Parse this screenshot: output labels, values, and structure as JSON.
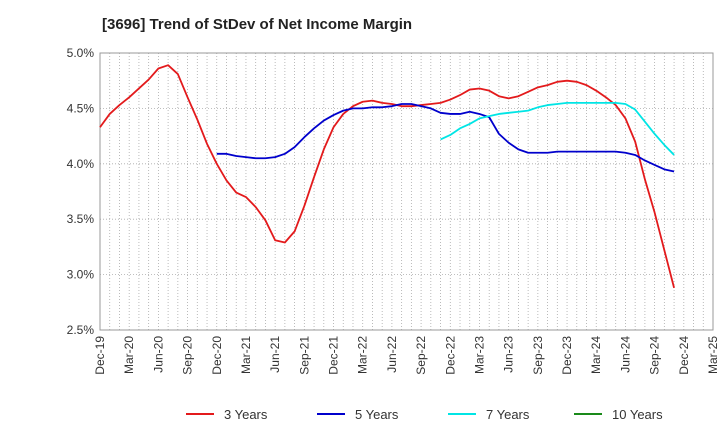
{
  "chart_data": {
    "type": "line",
    "title": "[3696]  Trend of StDev of Net Income Margin",
    "xlabel": "",
    "ylabel": "",
    "ylim": [
      2.5,
      5.0
    ],
    "y_ticks": [
      "2.5%",
      "3.0%",
      "3.5%",
      "4.0%",
      "4.5%",
      "5.0%"
    ],
    "x_ticks": [
      "Dec-19",
      "Mar-20",
      "Jun-20",
      "Sep-20",
      "Dec-20",
      "Mar-21",
      "Jun-21",
      "Sep-21",
      "Dec-21",
      "Mar-22",
      "Jun-22",
      "Sep-22",
      "Dec-22",
      "Mar-23",
      "Jun-23",
      "Sep-23",
      "Dec-23",
      "Mar-24",
      "Jun-24",
      "Sep-24",
      "Dec-24",
      "Mar-25"
    ],
    "grid": true,
    "legend_position": "bottom",
    "series": [
      {
        "name": "3 Years",
        "color": "#e31a1c",
        "points": [
          [
            0,
            4.33
          ],
          [
            1,
            4.45
          ],
          [
            2,
            4.53
          ],
          [
            3,
            4.6
          ],
          [
            4,
            4.68
          ],
          [
            5,
            4.76
          ],
          [
            6,
            4.86
          ],
          [
            7,
            4.89
          ],
          [
            8,
            4.81
          ],
          [
            9,
            4.6
          ],
          [
            10,
            4.4
          ],
          [
            11,
            4.18
          ],
          [
            12,
            4.0
          ],
          [
            13,
            3.85
          ],
          [
            14,
            3.74
          ],
          [
            15,
            3.7
          ],
          [
            16,
            3.61
          ],
          [
            17,
            3.49
          ],
          [
            18,
            3.31
          ],
          [
            19,
            3.29
          ],
          [
            20,
            3.39
          ],
          [
            21,
            3.62
          ],
          [
            22,
            3.88
          ],
          [
            23,
            4.13
          ],
          [
            24,
            4.33
          ],
          [
            25,
            4.45
          ],
          [
            26,
            4.52
          ],
          [
            27,
            4.56
          ],
          [
            28,
            4.57
          ],
          [
            29,
            4.55
          ],
          [
            30,
            4.54
          ],
          [
            31,
            4.52
          ],
          [
            32,
            4.52
          ],
          [
            33,
            4.53
          ],
          [
            34,
            4.54
          ],
          [
            35,
            4.55
          ],
          [
            36,
            4.58
          ],
          [
            37,
            4.62
          ],
          [
            38,
            4.67
          ],
          [
            39,
            4.68
          ],
          [
            40,
            4.66
          ],
          [
            41,
            4.61
          ],
          [
            42,
            4.59
          ],
          [
            43,
            4.61
          ],
          [
            44,
            4.65
          ],
          [
            45,
            4.69
          ],
          [
            46,
            4.71
          ],
          [
            47,
            4.74
          ],
          [
            48,
            4.75
          ],
          [
            49,
            4.74
          ],
          [
            50,
            4.71
          ],
          [
            51,
            4.66
          ],
          [
            52,
            4.6
          ],
          [
            53,
            4.53
          ],
          [
            54,
            4.41
          ],
          [
            55,
            4.2
          ],
          [
            56,
            3.86
          ],
          [
            57,
            3.56
          ],
          [
            58,
            3.22
          ],
          [
            59,
            2.88
          ]
        ]
      },
      {
        "name": "5 Years",
        "color": "#0000cc",
        "points": [
          [
            12,
            4.09
          ],
          [
            13,
            4.09
          ],
          [
            14,
            4.07
          ],
          [
            15,
            4.06
          ],
          [
            16,
            4.05
          ],
          [
            17,
            4.05
          ],
          [
            18,
            4.06
          ],
          [
            19,
            4.09
          ],
          [
            20,
            4.15
          ],
          [
            21,
            4.24
          ],
          [
            22,
            4.32
          ],
          [
            23,
            4.39
          ],
          [
            24,
            4.44
          ],
          [
            25,
            4.48
          ],
          [
            26,
            4.5
          ],
          [
            27,
            4.5
          ],
          [
            28,
            4.51
          ],
          [
            29,
            4.51
          ],
          [
            30,
            4.52
          ],
          [
            31,
            4.54
          ],
          [
            32,
            4.54
          ],
          [
            33,
            4.52
          ],
          [
            34,
            4.5
          ],
          [
            35,
            4.46
          ],
          [
            36,
            4.45
          ],
          [
            37,
            4.45
          ],
          [
            38,
            4.47
          ],
          [
            39,
            4.45
          ],
          [
            40,
            4.42
          ],
          [
            41,
            4.27
          ],
          [
            42,
            4.19
          ],
          [
            43,
            4.13
          ],
          [
            44,
            4.1
          ],
          [
            45,
            4.1
          ],
          [
            46,
            4.1
          ],
          [
            47,
            4.11
          ],
          [
            48,
            4.11
          ],
          [
            49,
            4.11
          ],
          [
            50,
            4.11
          ],
          [
            51,
            4.11
          ],
          [
            52,
            4.11
          ],
          [
            53,
            4.11
          ],
          [
            54,
            4.1
          ],
          [
            55,
            4.08
          ],
          [
            56,
            4.03
          ],
          [
            57,
            3.99
          ],
          [
            58,
            3.95
          ],
          [
            59,
            3.93
          ]
        ]
      },
      {
        "name": "7 Years",
        "color": "#00e5e5",
        "points": [
          [
            35,
            4.22
          ],
          [
            36,
            4.26
          ],
          [
            37,
            4.32
          ],
          [
            38,
            4.36
          ],
          [
            39,
            4.41
          ],
          [
            40,
            4.43
          ],
          [
            41,
            4.45
          ],
          [
            42,
            4.46
          ],
          [
            43,
            4.47
          ],
          [
            44,
            4.48
          ],
          [
            45,
            4.51
          ],
          [
            46,
            4.53
          ],
          [
            47,
            4.54
          ],
          [
            48,
            4.55
          ],
          [
            49,
            4.55
          ],
          [
            50,
            4.55
          ],
          [
            51,
            4.55
          ],
          [
            52,
            4.55
          ],
          [
            53,
            4.55
          ],
          [
            54,
            4.54
          ],
          [
            55,
            4.49
          ],
          [
            56,
            4.38
          ],
          [
            57,
            4.27
          ],
          [
            58,
            4.17
          ],
          [
            59,
            4.08
          ]
        ]
      },
      {
        "name": "10 Years",
        "color": "#1a8a1a",
        "points": []
      }
    ]
  }
}
